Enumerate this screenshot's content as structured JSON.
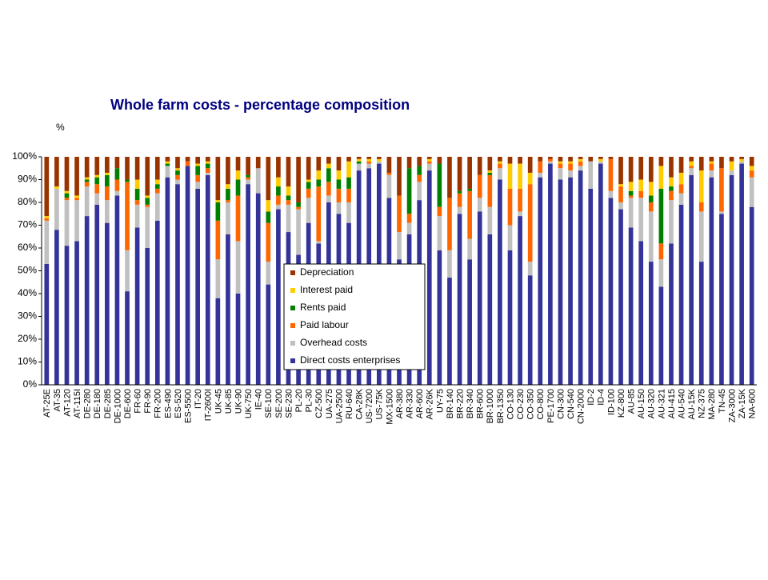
{
  "chart_data": {
    "type": "stacked_bar",
    "title": "Whole farm costs - percentage composition",
    "y_axis_label": "%",
    "categories": [
      "AT-25E",
      "AT-35",
      "AT-120",
      "AT-115I",
      "DE-280",
      "DE-180",
      "DE-285",
      "DE-1000",
      "DE-600",
      "FR-60",
      "FR-90",
      "FR-200",
      "ES-490",
      "ES-520",
      "ES-5500",
      "IT-20",
      "IT-2600I",
      "UK-45",
      "UK-85",
      "UK-90",
      "UK-750",
      "IE-40",
      "SE-100",
      "SE-200",
      "SE-230",
      "PL-20",
      "PL-30",
      "CZ-500",
      "UA-275",
      "UA-2500",
      "RU-640",
      "CA-28K",
      "US-7200",
      "US-75K",
      "MX-1500",
      "AR-380",
      "AR-330",
      "AR-600",
      "AR-26K",
      "UY-75",
      "BR-140",
      "BR-220",
      "BR-340",
      "BR-600",
      "BR-1000",
      "BR-1350",
      "CO-130",
      "CO-230",
      "CO-350",
      "CO-800",
      "PE-1700",
      "CN-300",
      "CN-540",
      "CN-2000",
      "ID-2",
      "ID-4",
      "ID-100",
      "KZ-800",
      "AU-85",
      "AU-150",
      "AU-320",
      "AU-321",
      "AU-415",
      "AU-540",
      "AU-15K",
      "NZ-375",
      "MA-280",
      "TN-45",
      "ZA-3000",
      "ZA-15K",
      "NA-600"
    ],
    "series": [
      {
        "name": "Direct costs enterprises",
        "color": "#333399",
        "values": [
          53,
          68,
          61,
          63,
          74,
          79,
          71,
          83,
          41,
          69,
          60,
          72,
          91,
          88,
          96,
          86,
          92,
          38,
          66,
          40,
          88,
          84,
          44,
          77,
          67,
          57,
          71,
          62,
          80,
          75,
          71,
          94,
          95,
          97,
          82,
          55,
          66,
          81,
          94,
          59,
          47,
          75,
          55,
          76,
          66,
          90,
          59,
          74,
          48,
          91,
          97,
          90,
          91,
          94,
          86,
          97,
          82,
          77,
          69,
          63,
          54,
          43,
          62,
          79,
          92,
          54,
          91,
          75,
          92,
          97,
          78
        ]
      },
      {
        "name": "Overhead costs",
        "color": "#c0c0c0",
        "values": [
          19,
          18,
          20,
          18,
          13,
          5,
          10,
          2,
          18,
          10,
          18,
          12,
          5,
          2,
          0,
          3,
          1,
          17,
          14,
          23,
          2,
          11,
          10,
          2,
          12,
          20,
          11,
          1,
          3,
          5,
          9,
          3,
          2,
          1,
          10,
          12,
          5,
          8,
          3,
          15,
          12,
          3,
          9,
          6,
          12,
          5,
          11,
          2,
          6,
          2,
          1,
          5,
          3,
          2,
          12,
          1,
          3,
          3,
          13,
          19,
          22,
          12,
          19,
          5,
          3,
          22,
          3,
          1,
          2,
          1,
          13
        ]
      },
      {
        "name": "Paid labour",
        "color": "#ff6600",
        "values": [
          1,
          0,
          1,
          1,
          2,
          4,
          6,
          5,
          30,
          2,
          1,
          2,
          0,
          2,
          2,
          3,
          2,
          17,
          1,
          20,
          1,
          0,
          17,
          4,
          2,
          1,
          4,
          24,
          6,
          6,
          6,
          0,
          1,
          0,
          1,
          16,
          4,
          3,
          1,
          4,
          23,
          6,
          21,
          10,
          14,
          2,
          16,
          10,
          34,
          5,
          1,
          2,
          3,
          2,
          0,
          0,
          14,
          7,
          1,
          3,
          4,
          7,
          4,
          4,
          1,
          4,
          3,
          19,
          0,
          0,
          3
        ]
      },
      {
        "name": "Rents paid",
        "color": "#008000",
        "values": [
          0,
          0,
          2,
          0,
          1,
          3,
          5,
          5,
          1,
          5,
          3,
          2,
          1,
          2,
          0,
          4,
          2,
          8,
          5,
          7,
          1,
          0,
          5,
          4,
          2,
          2,
          3,
          3,
          6,
          4,
          5,
          1,
          0,
          0,
          0,
          0,
          20,
          4,
          0,
          19,
          0,
          1,
          1,
          0,
          1,
          0,
          0,
          0,
          0,
          0,
          0,
          0,
          0,
          0,
          0,
          0,
          0,
          0,
          2,
          0,
          3,
          24,
          2,
          0,
          0,
          0,
          0,
          0,
          0,
          0,
          0
        ]
      },
      {
        "name": "Interest paid",
        "color": "#ffcc00",
        "values": [
          1,
          1,
          1,
          1,
          1,
          1,
          1,
          0,
          0,
          4,
          1,
          2,
          1,
          1,
          0,
          1,
          1,
          1,
          2,
          4,
          0,
          0,
          5,
          4,
          4,
          0,
          1,
          4,
          2,
          4,
          7,
          1,
          1,
          1,
          0,
          0,
          0,
          0,
          1,
          0,
          0,
          0,
          0,
          0,
          1,
          1,
          11,
          11,
          5,
          0,
          0,
          1,
          1,
          1,
          0,
          1,
          0,
          1,
          4,
          5,
          6,
          10,
          4,
          5,
          2,
          14,
          1,
          0,
          4,
          1,
          2
        ]
      },
      {
        "name": "Depreciation",
        "color": "#993300",
        "values": [
          26,
          13,
          15,
          17,
          9,
          8,
          7,
          5,
          10,
          10,
          17,
          10,
          2,
          5,
          2,
          3,
          2,
          19,
          12,
          6,
          8,
          5,
          19,
          9,
          13,
          20,
          10,
          6,
          3,
          6,
          2,
          1,
          1,
          1,
          7,
          17,
          5,
          4,
          1,
          3,
          18,
          15,
          14,
          8,
          6,
          2,
          3,
          3,
          7,
          2,
          1,
          2,
          2,
          1,
          2,
          1,
          1,
          12,
          11,
          10,
          11,
          4,
          9,
          7,
          2,
          6,
          2,
          5,
          2,
          1,
          4
        ]
      }
    ],
    "ylim": [
      0,
      100
    ],
    "yticks": [
      {
        "value": 0,
        "label": "0%"
      },
      {
        "value": 10,
        "label": "10%"
      },
      {
        "value": 20,
        "label": "20%"
      },
      {
        "value": 30,
        "label": "30%"
      },
      {
        "value": 40,
        "label": "40%"
      },
      {
        "value": 50,
        "label": "50%"
      },
      {
        "value": 60,
        "label": "60%"
      },
      {
        "value": 70,
        "label": "70%"
      },
      {
        "value": 80,
        "label": "80%"
      },
      {
        "value": 90,
        "label": "90%"
      },
      {
        "value": 100,
        "label": "100%"
      }
    ],
    "legend": "center"
  }
}
